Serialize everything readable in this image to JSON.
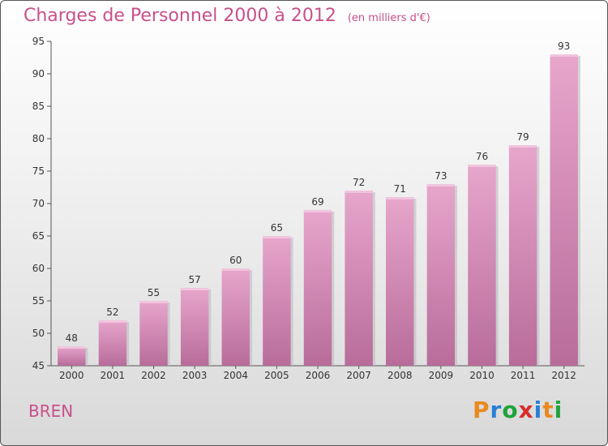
{
  "title": "Charges de Personnel 2000 à 2012",
  "unit_note": "(en milliers d'€)",
  "entity": "BREN",
  "logo": {
    "text": "Proxiti",
    "letters": [
      "P",
      "r",
      "o",
      "x",
      "i",
      "t",
      "i"
    ],
    "colors": [
      "#e98a1f",
      "#2a7fd4",
      "#1fa33a",
      "#d82c2c",
      "#2a7fd4",
      "#e98a1f",
      "#1fa33a"
    ]
  },
  "chart_data": {
    "type": "bar",
    "categories": [
      "2000",
      "2001",
      "2002",
      "2003",
      "2004",
      "2005",
      "2006",
      "2007",
      "2008",
      "2009",
      "2010",
      "2011",
      "2012"
    ],
    "values": [
      48,
      52,
      55,
      57,
      60,
      65,
      69,
      72,
      71,
      73,
      76,
      79,
      93
    ],
    "ylim": [
      45,
      95
    ],
    "yticks": [
      45,
      50,
      55,
      60,
      65,
      70,
      75,
      80,
      85,
      90,
      95
    ],
    "grid": false,
    "bar_color": "#d68ab6"
  }
}
